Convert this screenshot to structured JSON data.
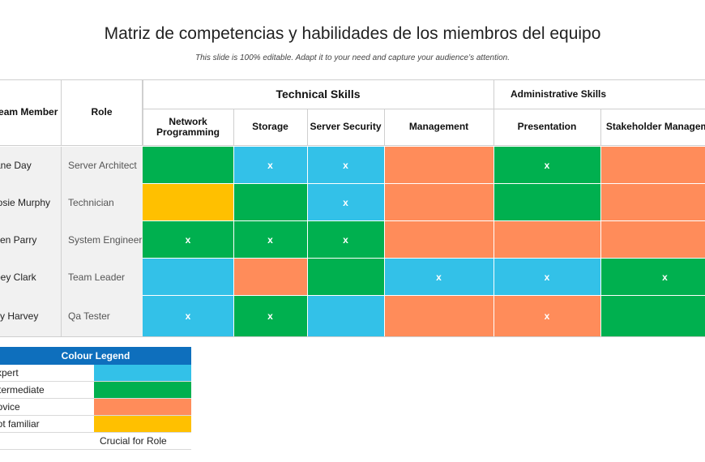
{
  "header": {
    "title": "Matriz de competencias y habilidades de los miembros del equipo",
    "subtitle": "This slide is 100% editable. Adapt it to your need and capture your audience’s attention."
  },
  "colors": {
    "expert": "#33c1e8",
    "intermediate": "#00b04f",
    "novice": "#ff8c5a",
    "not_familiar": "#ffc000"
  },
  "matrix": {
    "col_member": "Team Member",
    "col_role": "Role",
    "group_technical": "Technical Skills",
    "group_admin": "Administrative Skills",
    "skills": [
      "Network Programming",
      "Storage",
      "Server Security",
      "Management",
      "Presentation",
      "Stakeholder Management"
    ],
    "rows": [
      {
        "member": "Jane Day",
        "role": "Server Architect",
        "cells": [
          {
            "level": "intermediate",
            "mark": ""
          },
          {
            "level": "expert",
            "mark": "x"
          },
          {
            "level": "expert",
            "mark": "x"
          },
          {
            "level": "novice",
            "mark": ""
          },
          {
            "level": "intermediate",
            "mark": "x"
          },
          {
            "level": "novice",
            "mark": ""
          }
        ]
      },
      {
        "member": "Rosie Murphy",
        "role": "Technician",
        "cells": [
          {
            "level": "not_familiar",
            "mark": ""
          },
          {
            "level": "intermediate",
            "mark": ""
          },
          {
            "level": "expert",
            "mark": "x"
          },
          {
            "level": "novice",
            "mark": ""
          },
          {
            "level": "intermediate",
            "mark": ""
          },
          {
            "level": "novice",
            "mark": ""
          }
        ]
      },
      {
        "member": "Glen Parry",
        "role": "System Engineer",
        "cells": [
          {
            "level": "intermediate",
            "mark": "x"
          },
          {
            "level": "intermediate",
            "mark": "x"
          },
          {
            "level": "intermediate",
            "mark": "x"
          },
          {
            "level": "novice",
            "mark": ""
          },
          {
            "level": "novice",
            "mark": ""
          },
          {
            "level": "novice",
            "mark": ""
          }
        ]
      },
      {
        "member": "Joey Clark",
        "role": "Team Leader",
        "cells": [
          {
            "level": "expert",
            "mark": ""
          },
          {
            "level": "novice",
            "mark": ""
          },
          {
            "level": "intermediate",
            "mark": ""
          },
          {
            "level": "expert",
            "mark": "x"
          },
          {
            "level": "expert",
            "mark": "x"
          },
          {
            "level": "intermediate",
            "mark": "x"
          }
        ]
      },
      {
        "member": "Lily Harvey",
        "role": "Qa Tester",
        "cells": [
          {
            "level": "expert",
            "mark": "x"
          },
          {
            "level": "intermediate",
            "mark": "x"
          },
          {
            "level": "expert",
            "mark": ""
          },
          {
            "level": "novice",
            "mark": ""
          },
          {
            "level": "novice",
            "mark": "x"
          },
          {
            "level": "intermediate",
            "mark": ""
          }
        ]
      }
    ]
  },
  "legend": {
    "title": "Colour Legend",
    "items": [
      {
        "label": "Expert",
        "level": "expert"
      },
      {
        "label": "Intermediate",
        "level": "intermediate"
      },
      {
        "label": "Novice",
        "level": "novice"
      },
      {
        "label": "Not familiar",
        "level": "not_familiar"
      }
    ],
    "crucial_label": "Crucial for Role"
  }
}
